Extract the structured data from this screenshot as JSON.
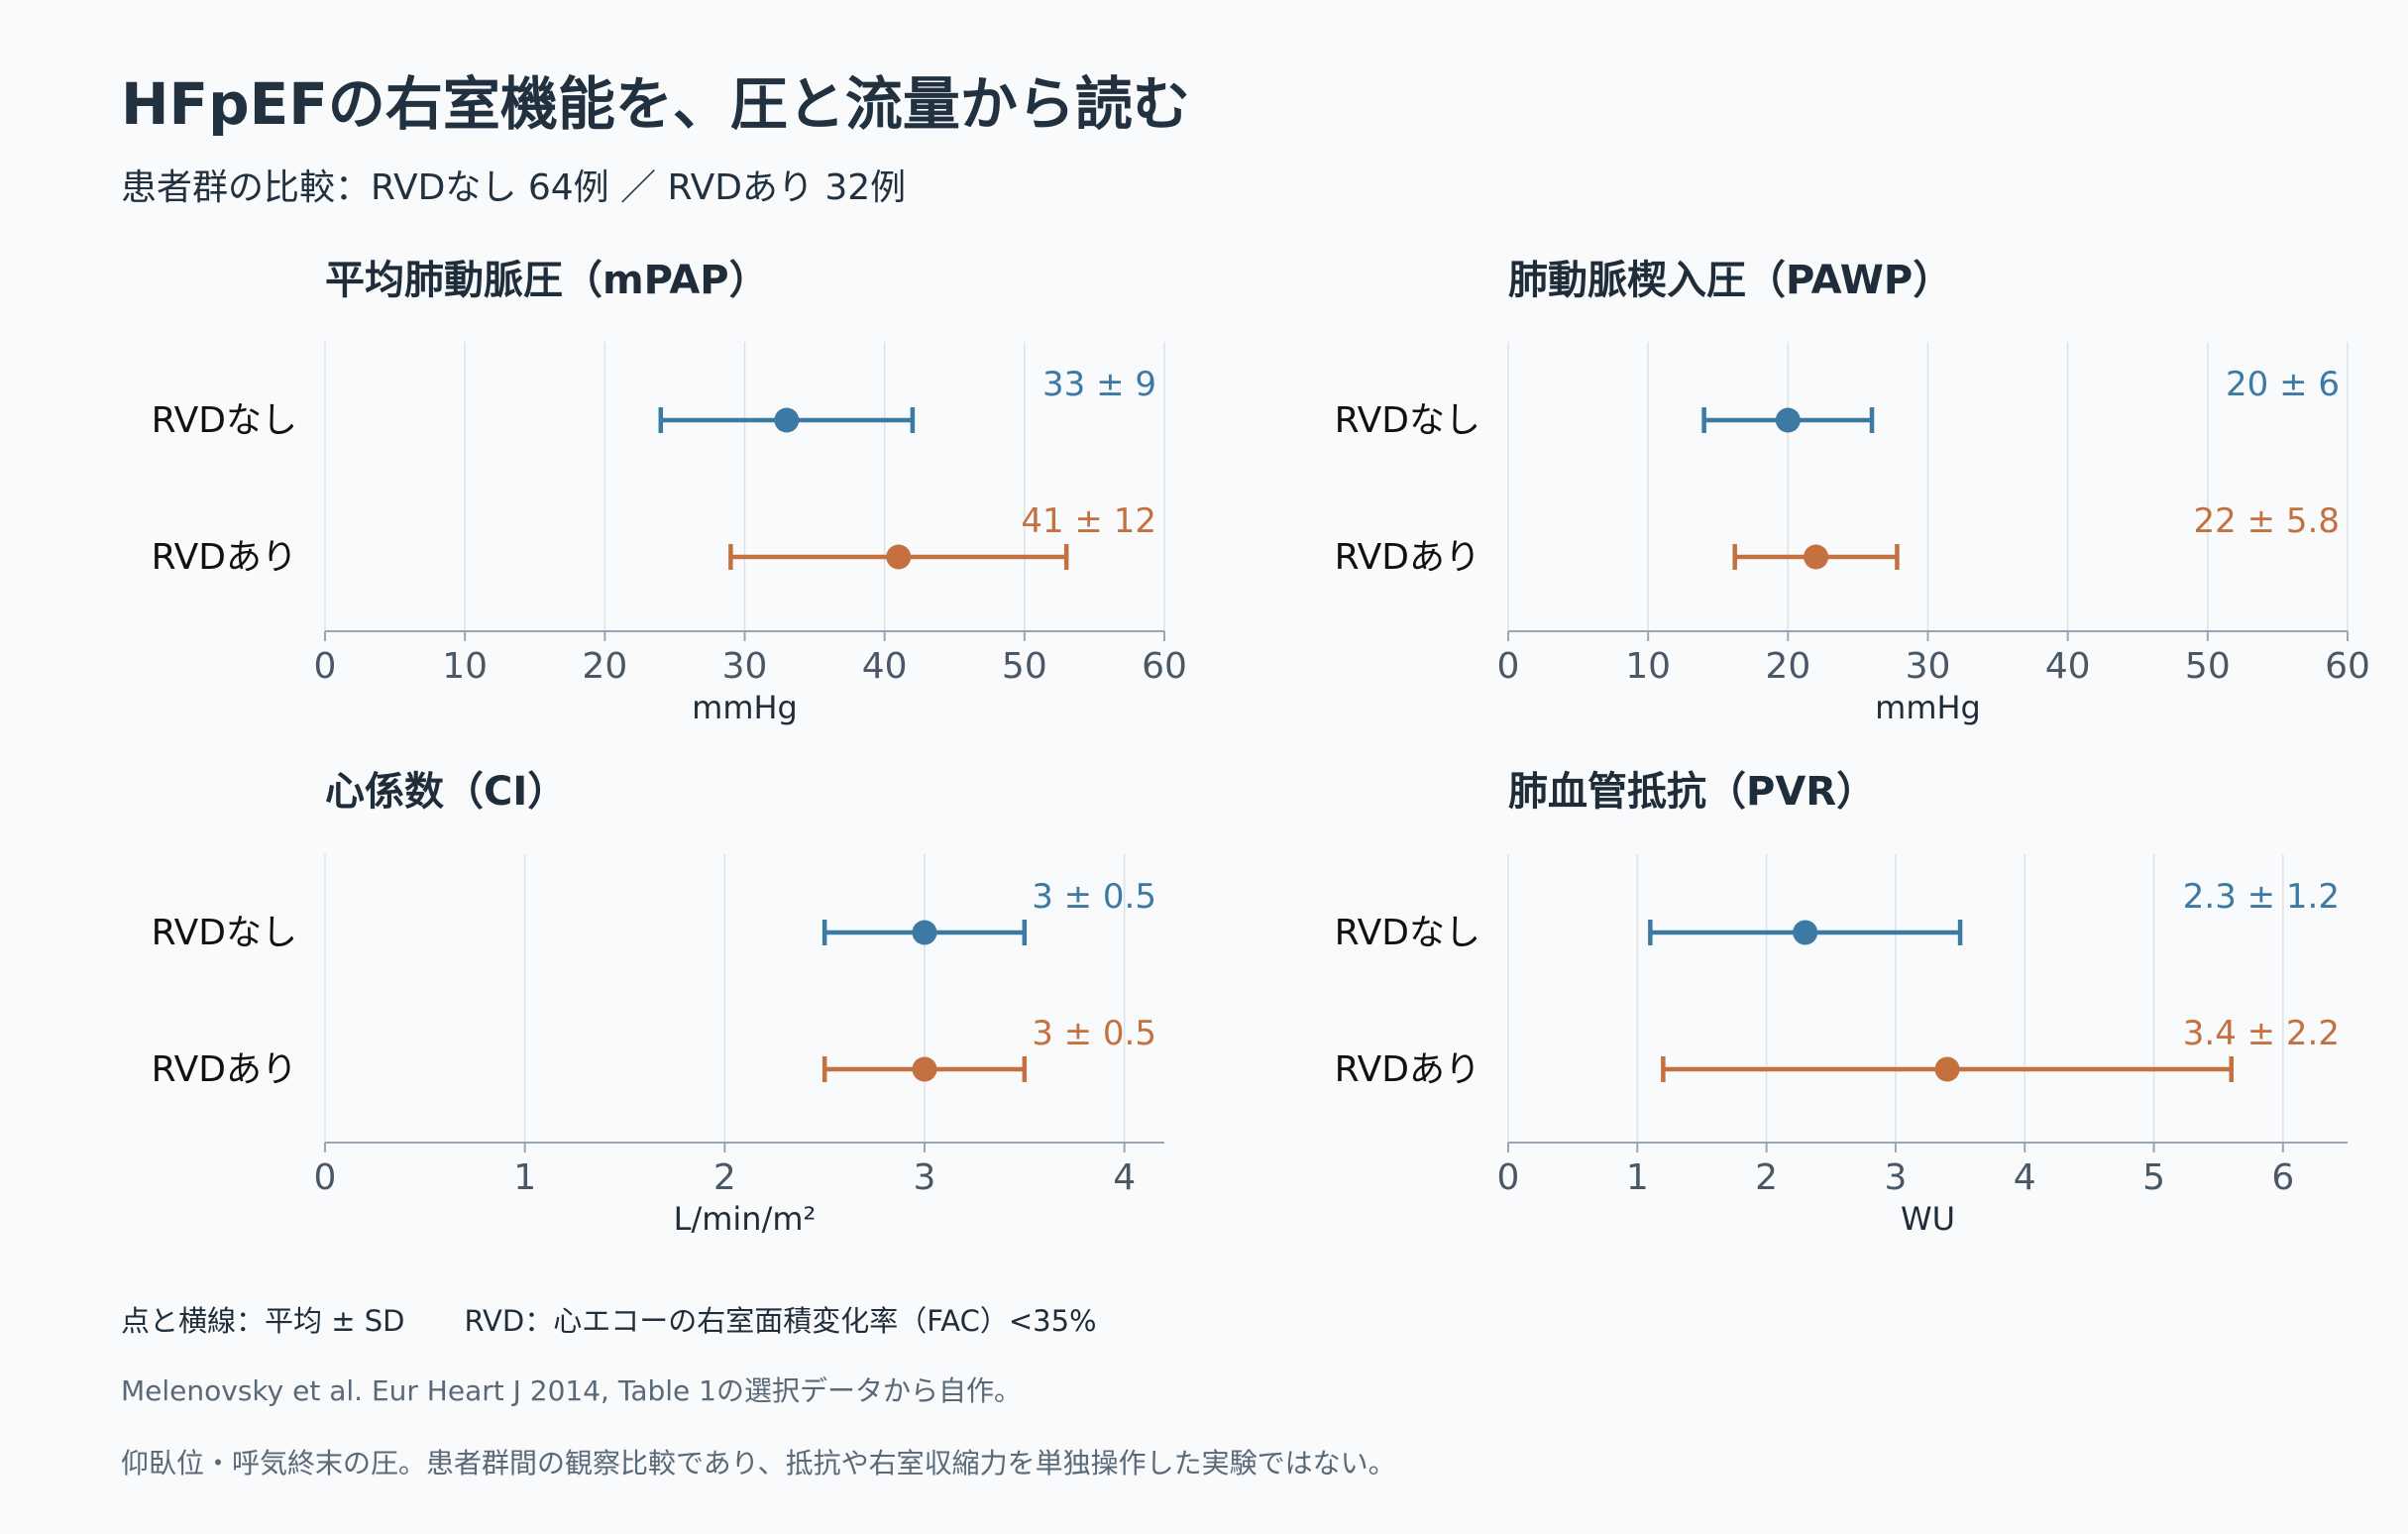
{
  "title": "HFpEFの右室機能を、圧と流量から読む",
  "subtitle": "患者群の比較：RVDなし 64例 ／ RVDあり 32例",
  "colors": {
    "rvd_none": "#3c7aa3",
    "rvd_present": "#c5703f",
    "grid": "#dde2e7",
    "axis": "#9aa7b3",
    "tick_text": "#4a5866",
    "text": "#1f2d3a"
  },
  "chart_data": [
    {
      "type": "dot-errorbar",
      "title": "平均肺動脈圧（mPAP）",
      "xlabel": "mmHg",
      "xlim": [
        0,
        60
      ],
      "xticks": [
        0,
        10,
        20,
        30,
        40,
        50,
        60
      ],
      "tick_labels": [
        "0",
        "10",
        "20",
        "30",
        "40",
        "50",
        "60"
      ],
      "series": [
        {
          "name": "RVDなし",
          "mean": 33,
          "sd": 9,
          "label": "33 ± 9"
        },
        {
          "name": "RVDあり",
          "mean": 41,
          "sd": 12,
          "label": "41 ± 12"
        }
      ]
    },
    {
      "type": "dot-errorbar",
      "title": "肺動脈楔入圧（PAWP）",
      "xlabel": "mmHg",
      "xlim": [
        0,
        60
      ],
      "xticks": [
        0,
        10,
        20,
        30,
        40,
        50,
        60
      ],
      "tick_labels": [
        "0",
        "10",
        "20",
        "30",
        "40",
        "50",
        "60"
      ],
      "series": [
        {
          "name": "RVDなし",
          "mean": 20,
          "sd": 6,
          "label": "20 ± 6"
        },
        {
          "name": "RVDあり",
          "mean": 22,
          "sd": 5.8,
          "label": "22 ± 5.8"
        }
      ]
    },
    {
      "type": "dot-errorbar",
      "title": "心係数（CI）",
      "xlabel": "L/min/m²",
      "xlim": [
        0,
        4.2
      ],
      "xticks": [
        0,
        1,
        2,
        3,
        4
      ],
      "tick_labels": [
        "0",
        "1",
        "2",
        "3",
        "4"
      ],
      "series": [
        {
          "name": "RVDなし",
          "mean": 3,
          "sd": 0.5,
          "label": "3 ± 0.5"
        },
        {
          "name": "RVDあり",
          "mean": 3,
          "sd": 0.5,
          "label": "3 ± 0.5"
        }
      ]
    },
    {
      "type": "dot-errorbar",
      "title": "肺血管抵抗（PVR）",
      "xlabel": "WU",
      "xlim": [
        0,
        6.5
      ],
      "xticks": [
        0,
        1,
        2,
        3,
        4,
        5,
        6
      ],
      "tick_labels": [
        "0",
        "1",
        "2",
        "3",
        "4",
        "5",
        "6"
      ],
      "series": [
        {
          "name": "RVDなし",
          "mean": 2.3,
          "sd": 1.2,
          "label": "2.3 ± 1.2"
        },
        {
          "name": "RVDあり",
          "mean": 3.4,
          "sd": 2.2,
          "label": "3.4 ± 2.2"
        }
      ]
    }
  ],
  "footer": {
    "legend": "点と横線：平均 ± SD",
    "definition": "RVD：心エコーの右室面積変化率（FAC）<35%",
    "source": "Melenovsky et al. Eur Heart J 2014, Table 1の選択データから自作。",
    "note": "仰臥位・呼気終末の圧。患者群間の観察比較であり、抵抗や右室収縮力を単独操作した実験ではない。"
  }
}
